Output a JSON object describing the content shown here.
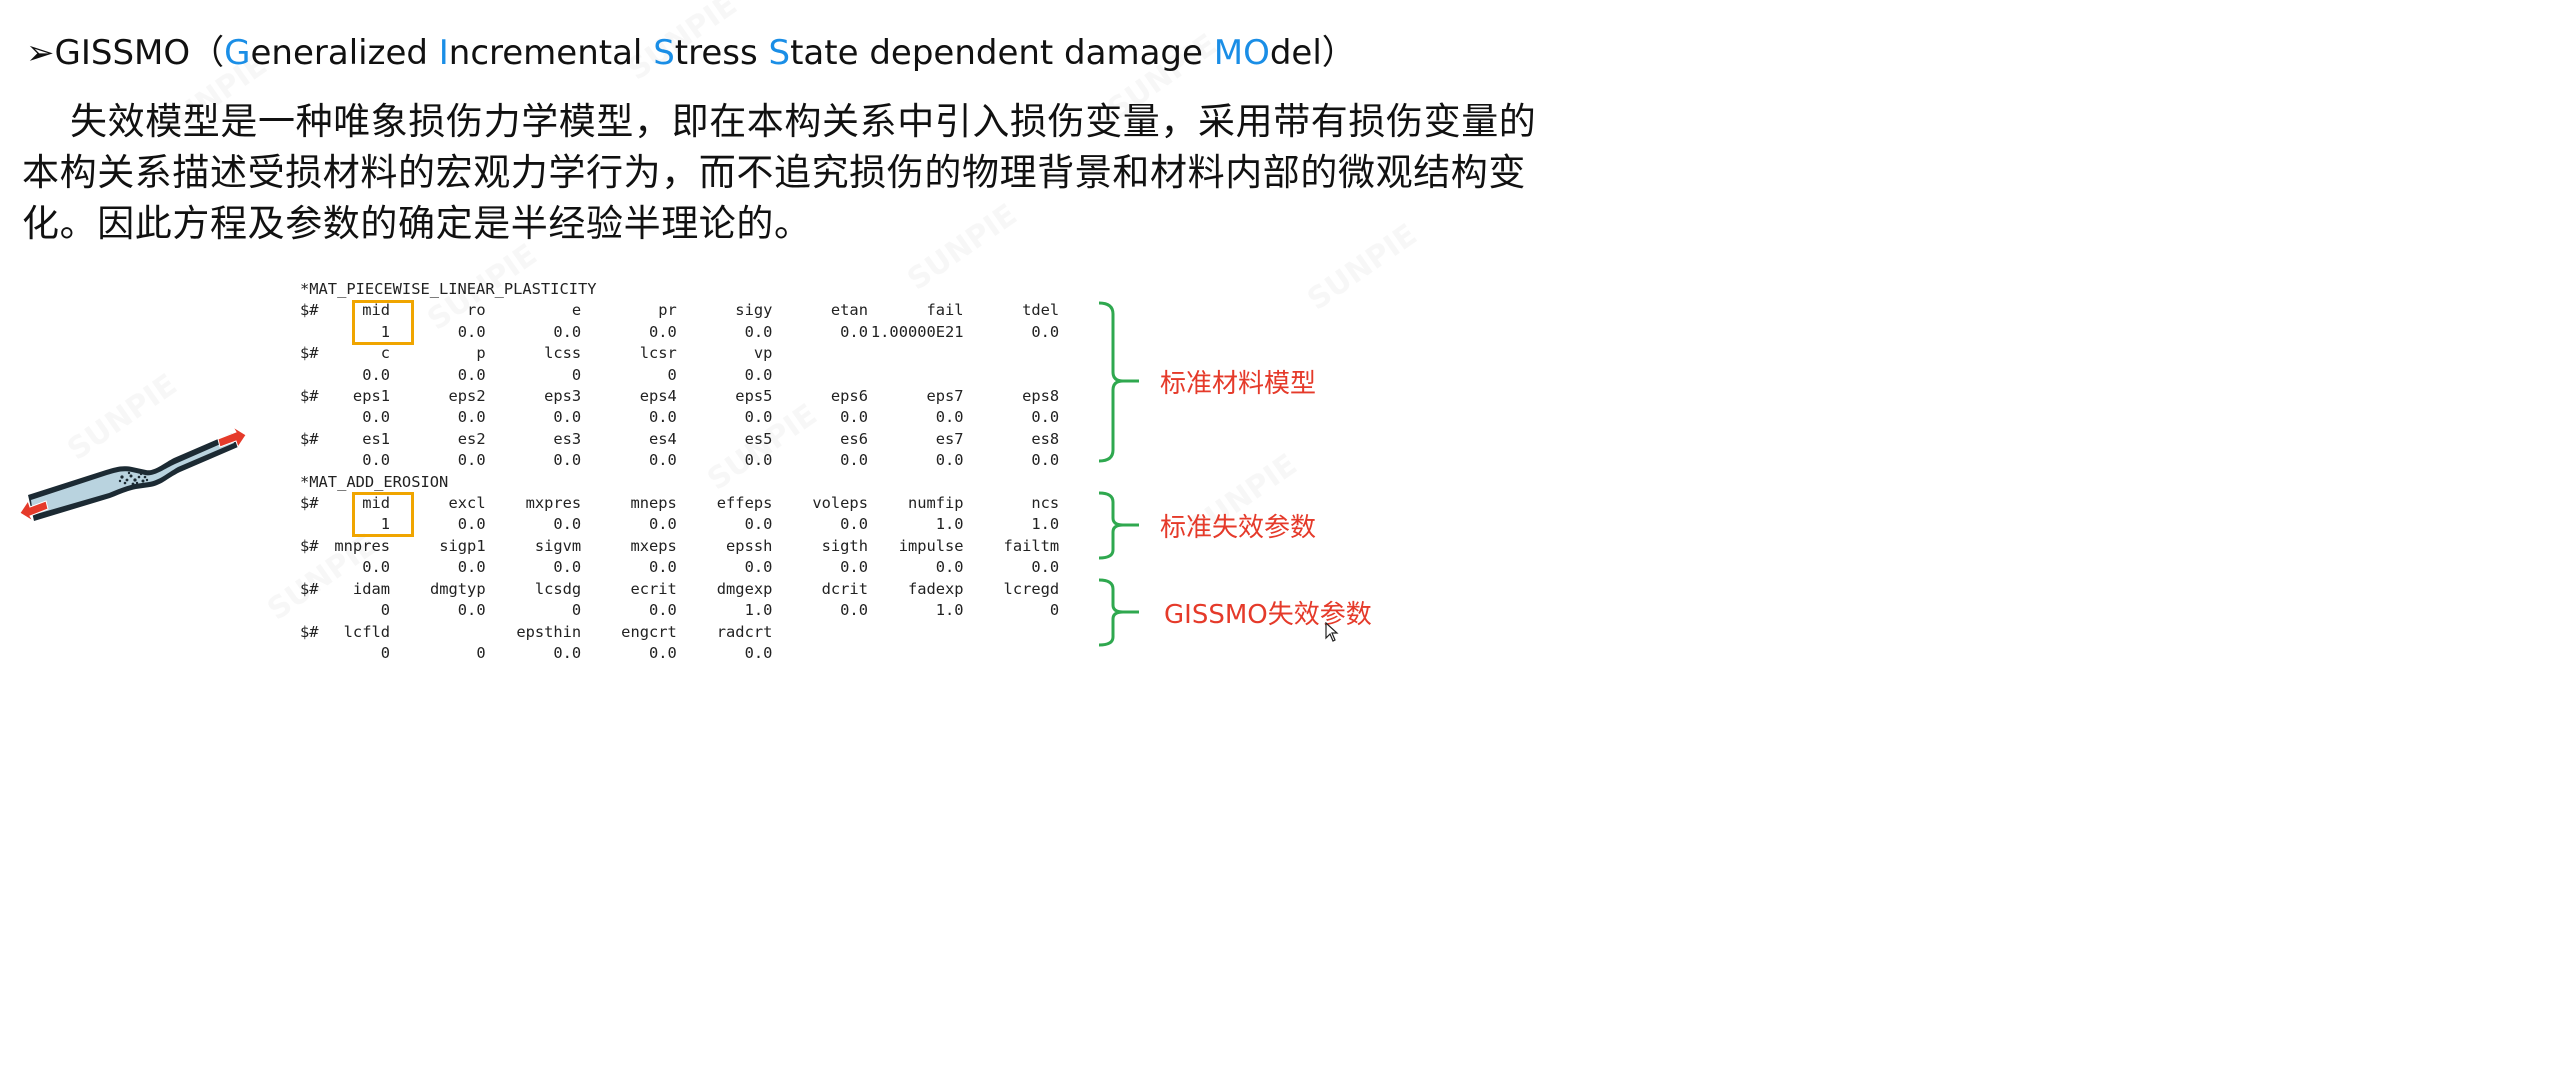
{
  "title": {
    "bullet": "➢",
    "parts": [
      {
        "text": "GISSMO（",
        "color": "#111111"
      },
      {
        "text": "G",
        "color": "#1a8ee6"
      },
      {
        "text": "eneralized ",
        "color": "#111111"
      },
      {
        "text": "I",
        "color": "#1a8ee6"
      },
      {
        "text": "ncremental ",
        "color": "#111111"
      },
      {
        "text": "S",
        "color": "#1a8ee6"
      },
      {
        "text": "tress ",
        "color": "#111111"
      },
      {
        "text": "S",
        "color": "#1a8ee6"
      },
      {
        "text": "tate dependent damage ",
        "color": "#111111"
      },
      {
        "text": "MO",
        "color": "#1a8ee6"
      },
      {
        "text": "del）",
        "color": "#111111"
      }
    ]
  },
  "paragraph": "失效模型是一种唯象损伤力学模型，即在本构关系中引入损伤变量，采用带有损伤变量的本构关系描述受损材料的宏观力学行为，而不追究损伤的物理背景和材料内部的微观结构变化。因此方程及参数的确定是半经验半理论的。",
  "keyword_blocks": [
    {
      "keyword": "*MAT_PIECEWISE_LINEAR_PLASTICITY",
      "rows": [
        {
          "prefix": "$#",
          "cells": [
            "mid",
            "ro",
            "e",
            "pr",
            "sigy",
            "etan",
            "fail",
            "tdel"
          ]
        },
        {
          "prefix": "",
          "cells": [
            "1",
            "0.0",
            "0.0",
            "0.0",
            "0.0",
            "0.0",
            "1.00000E21",
            "0.0"
          ]
        },
        {
          "prefix": "$#",
          "cells": [
            "c",
            "p",
            "lcss",
            "lcsr",
            "vp"
          ]
        },
        {
          "prefix": "",
          "cells": [
            "0.0",
            "0.0",
            "0",
            "0",
            "0.0"
          ]
        },
        {
          "prefix": "$#",
          "cells": [
            "eps1",
            "eps2",
            "eps3",
            "eps4",
            "eps5",
            "eps6",
            "eps7",
            "eps8"
          ]
        },
        {
          "prefix": "",
          "cells": [
            "0.0",
            "0.0",
            "0.0",
            "0.0",
            "0.0",
            "0.0",
            "0.0",
            "0.0"
          ]
        },
        {
          "prefix": "$#",
          "cells": [
            "es1",
            "es2",
            "es3",
            "es4",
            "es5",
            "es6",
            "es7",
            "es8"
          ]
        },
        {
          "prefix": "",
          "cells": [
            "0.0",
            "0.0",
            "0.0",
            "0.0",
            "0.0",
            "0.0",
            "0.0",
            "0.0"
          ]
        }
      ]
    },
    {
      "keyword": "*MAT_ADD_EROSION",
      "rows": [
        {
          "prefix": "$#",
          "cells": [
            "mid",
            "excl",
            "mxpres",
            "mneps",
            "effeps",
            "voleps",
            "numfip",
            "ncs"
          ]
        },
        {
          "prefix": "",
          "cells": [
            "1",
            "0.0",
            "0.0",
            "0.0",
            "0.0",
            "0.0",
            "1.0",
            "1.0"
          ]
        },
        {
          "prefix": "$#",
          "cells": [
            "mnpres",
            "sigp1",
            "sigvm",
            "mxeps",
            "epssh",
            "sigth",
            "impulse",
            "failtm"
          ]
        },
        {
          "prefix": "",
          "cells": [
            "0.0",
            "0.0",
            "0.0",
            "0.0",
            "0.0",
            "0.0",
            "0.0",
            "0.0"
          ]
        },
        {
          "prefix": "$#",
          "cells": [
            "idam",
            "dmgtyp",
            "lcsdg",
            "ecrit",
            "dmgexp",
            "dcrit",
            "fadexp",
            "lcregd"
          ]
        },
        {
          "prefix": "",
          "cells": [
            "0",
            "0.0",
            "0",
            "0.0",
            "1.0",
            "0.0",
            "1.0",
            "0"
          ]
        },
        {
          "prefix": "$#",
          "cells": [
            "lcfld",
            "",
            "epsthin",
            "engcrt",
            "radcrt"
          ]
        },
        {
          "prefix": "",
          "cells": [
            "0",
            "0",
            "0.0",
            "0.0",
            "0.0"
          ]
        }
      ]
    }
  ],
  "annotations": {
    "standard_material": "标准材料模型",
    "standard_failure": "标准失效参数",
    "gissmo_failure": "GISSMO失效参数"
  },
  "colors": {
    "accent_blue": "#1a8ee6",
    "annotation_red": "#e53a2a",
    "bracket_green": "#2fa84f",
    "highlight_orange": "#f0a500"
  },
  "watermark": "SUNPIE"
}
